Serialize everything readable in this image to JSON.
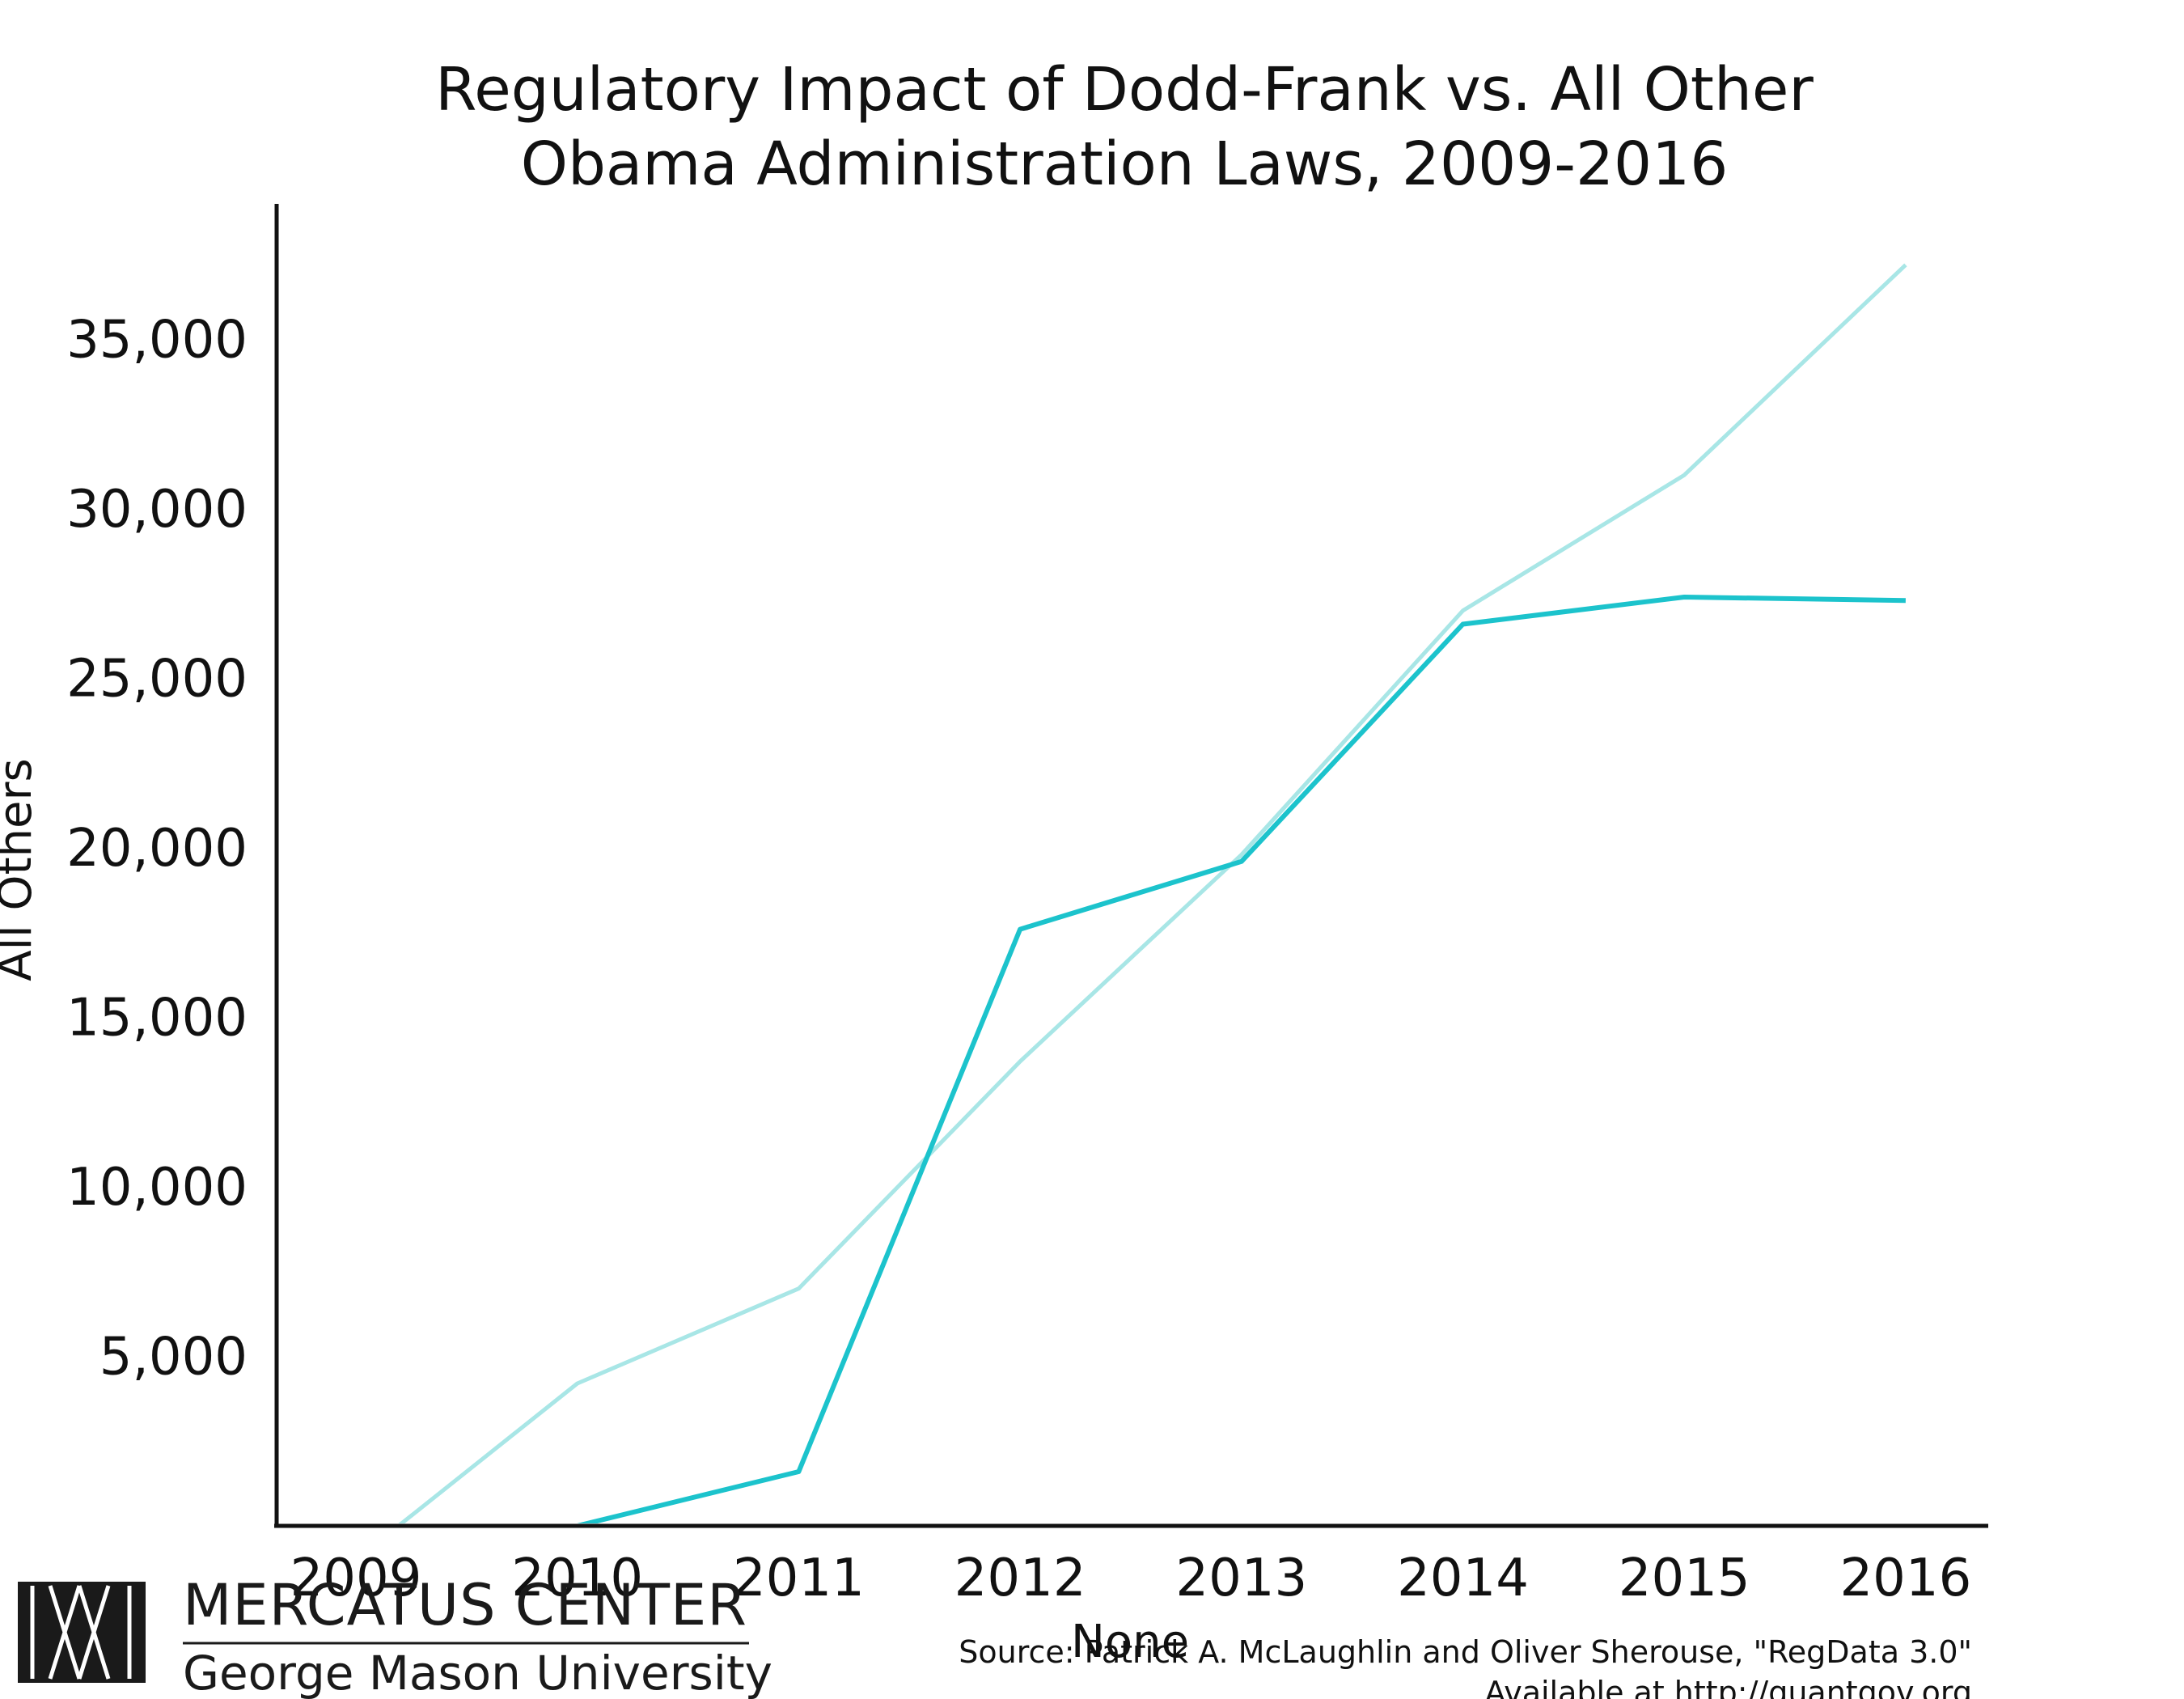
{
  "chart_data": {
    "type": "line",
    "title_lines": [
      "Regulatory Impact of Dodd-Frank vs. All Other",
      "Obama Administration Laws, 2009-2016"
    ],
    "xlabel": "None",
    "ylabel": "All Others",
    "x": [
      "2009",
      "2010",
      "2011",
      "2012",
      "2013",
      "2014",
      "2015",
      "2016"
    ],
    "y_ticks": [
      {
        "value": 5000,
        "label": "5,000"
      },
      {
        "value": 10000,
        "label": "10,000"
      },
      {
        "value": 15000,
        "label": "15,000"
      },
      {
        "value": 20000,
        "label": "20,000"
      },
      {
        "value": 25000,
        "label": "25,000"
      },
      {
        "value": 30000,
        "label": "30,000"
      },
      {
        "value": 35000,
        "label": "35,000"
      }
    ],
    "ylim": [
      0,
      39000
    ],
    "grid": false,
    "legend": "none",
    "series": [
      {
        "values": [
          -1000,
          4200,
          7000,
          13700,
          19800,
          27000,
          31000,
          37200
        ],
        "color": "#a8e6e6",
        "width": 5
      },
      {
        "values": [
          -6000,
          0,
          1600,
          17600,
          19600,
          26600,
          27400,
          27300
        ],
        "color": "#1cc3cc",
        "width": 6
      }
    ],
    "source_lines": [
      "Source: Patrick A. McLaughlin and Oliver Sherouse, \"RegData 3.0\"",
      "Available at http://quantgov.org"
    ]
  },
  "logo": {
    "line1": "MERCATUS CENTER",
    "line2": "George Mason University"
  }
}
